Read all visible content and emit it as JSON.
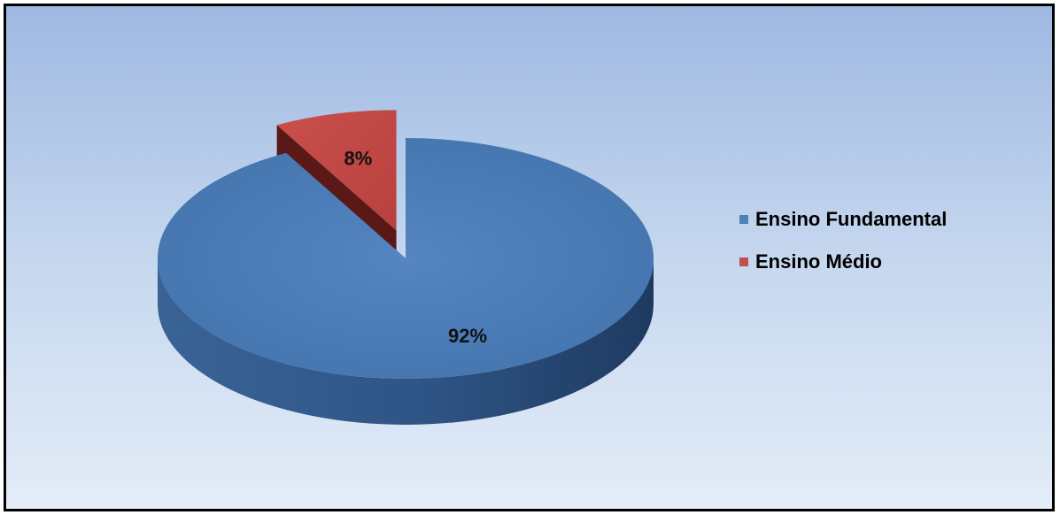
{
  "chart_data": {
    "type": "pie",
    "style": "3d-exploded",
    "categories": [
      "Ensino Fundamental",
      "Ensino Médio"
    ],
    "values": [
      92,
      8
    ],
    "labels": [
      "92%",
      "8%"
    ],
    "colors": [
      "#4f81bd",
      "#c0504d"
    ],
    "legend_position": "right"
  }
}
